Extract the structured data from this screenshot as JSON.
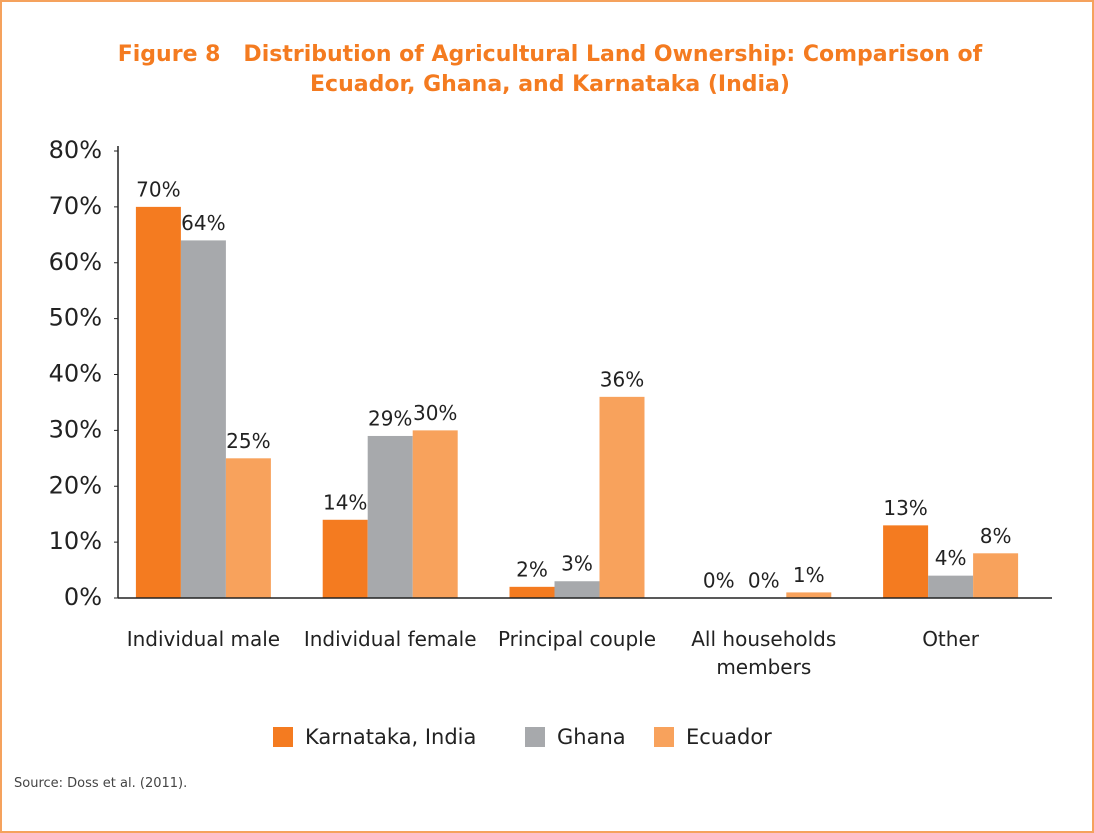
{
  "chart_data": {
    "type": "bar",
    "title": "Figure 8   Distribution of Agricultural Land Ownership: Comparison of Ecuador, Ghana, and Karnataka (India)",
    "categories": [
      "Individual male",
      "Individual female",
      "Principal couple",
      "All households members",
      "Other"
    ],
    "series": [
      {
        "name": "Karnataka, India",
        "color": "#f47b20",
        "values": [
          70,
          14,
          2,
          0,
          13
        ],
        "value_labels": [
          "70%",
          "14%",
          "2%",
          "0%",
          "13%"
        ]
      },
      {
        "name": "Ghana",
        "color": "#a7a9ac",
        "values": [
          64,
          29,
          3,
          0,
          4
        ],
        "value_labels": [
          "64%",
          "29%",
          "3%",
          "0%",
          "4%"
        ]
      },
      {
        "name": "Ecuador",
        "color": "#f8a25c",
        "values": [
          25,
          30,
          36,
          1,
          8
        ],
        "value_labels": [
          "25%",
          "30%",
          "36%",
          "1%",
          "8%"
        ]
      }
    ],
    "ylim": [
      0,
      80
    ],
    "yticks": [
      {
        "value": 0,
        "label": "0%"
      },
      {
        "value": 10,
        "label": "10%"
      },
      {
        "value": 20,
        "label": "20%"
      },
      {
        "value": 30,
        "label": "30%"
      },
      {
        "value": 40,
        "label": "40%"
      },
      {
        "value": 50,
        "label": "50%"
      },
      {
        "value": 60,
        "label": "60%"
      },
      {
        "value": 70,
        "label": "70%"
      },
      {
        "value": 80,
        "label": "80%"
      }
    ],
    "legend": "bottom",
    "source": "Source: Doss et al. (2011)."
  }
}
